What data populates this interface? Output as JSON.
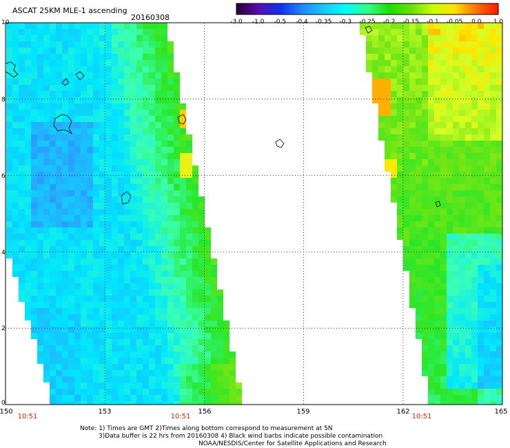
{
  "title": "ASCAT 25KM MLE-1 ascending",
  "date": "20160308",
  "y_ticks": [
    "10",
    "8",
    "6",
    "4",
    "2",
    "0"
  ],
  "x_ticks": [
    "150",
    "153",
    "156",
    "159",
    "162",
    "165"
  ],
  "times": [
    "10:51",
    "10:51",
    "10:51"
  ],
  "colorbar": {
    "labels": [
      "-3.0",
      "-1.0",
      "-0.5",
      "-0.4",
      "-0.35",
      "-0.3",
      "-0.25",
      "-0.2",
      "-0.15",
      "-0.1",
      "-0.05",
      "0.0",
      "1.0"
    ],
    "colors": [
      "#2a0030",
      "#5a0cb0",
      "#1030f0",
      "#1e88ff",
      "#18c8ff",
      "#00ffff",
      "#33ff88",
      "#19e000",
      "#66e000",
      "#c8ff00",
      "#ffe000",
      "#ff7000",
      "#ff1600"
    ]
  },
  "notes": {
    "line1": "Note: 1) Times are GMT 2)Times along bottom correspond to measurement at 5N",
    "line2": "3)Data buffer is 22 hrs from 20160308 4) Black wind barbs indicate possible contamination",
    "line3": "NOAA/NESDIS/Center for Satellite Applications and Research"
  }
}
